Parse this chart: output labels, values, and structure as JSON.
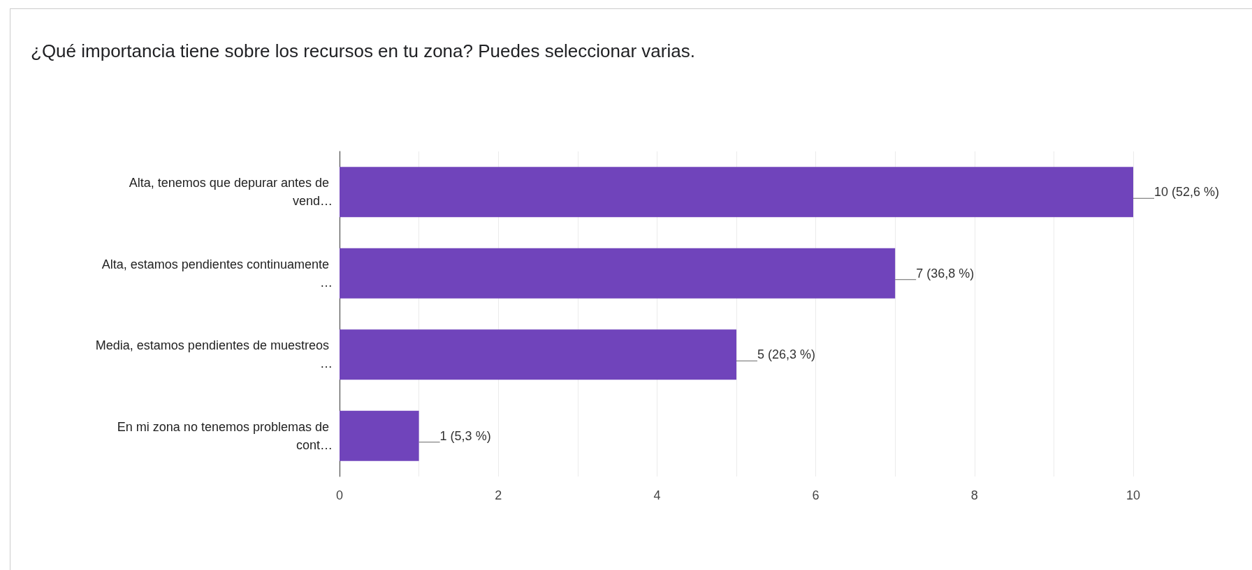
{
  "chart_data": {
    "type": "bar",
    "orientation": "horizontal",
    "title": "¿Qué importancia tiene sobre los recursos en tu zona? Puedes seleccionar varias.",
    "categories": [
      "Alta, tenemos que depurar antes de vend…",
      "Alta, estamos pendientes continuamente …",
      "Media, estamos pendientes de muestreos …",
      "En mi zona no tenemos problemas de cont…"
    ],
    "values": [
      10,
      7,
      5,
      1
    ],
    "color": "#7044bb",
    "value_labels": [
      "10 (52,6 %)",
      "7 (36,8 %)",
      "5 (26,3 %)",
      "1 (5,3 %)"
    ],
    "xlim": [
      0,
      10
    ],
    "xticks": [
      0,
      {
        "value": 1,
        "label": null
      },
      2,
      {
        "value": 3,
        "label": null
      },
      4,
      {
        "value": 5,
        "label": null
      },
      6,
      {
        "value": 7,
        "label": null
      },
      8,
      {
        "value": 9,
        "label": null
      },
      10
    ],
    "grid": "x"
  }
}
